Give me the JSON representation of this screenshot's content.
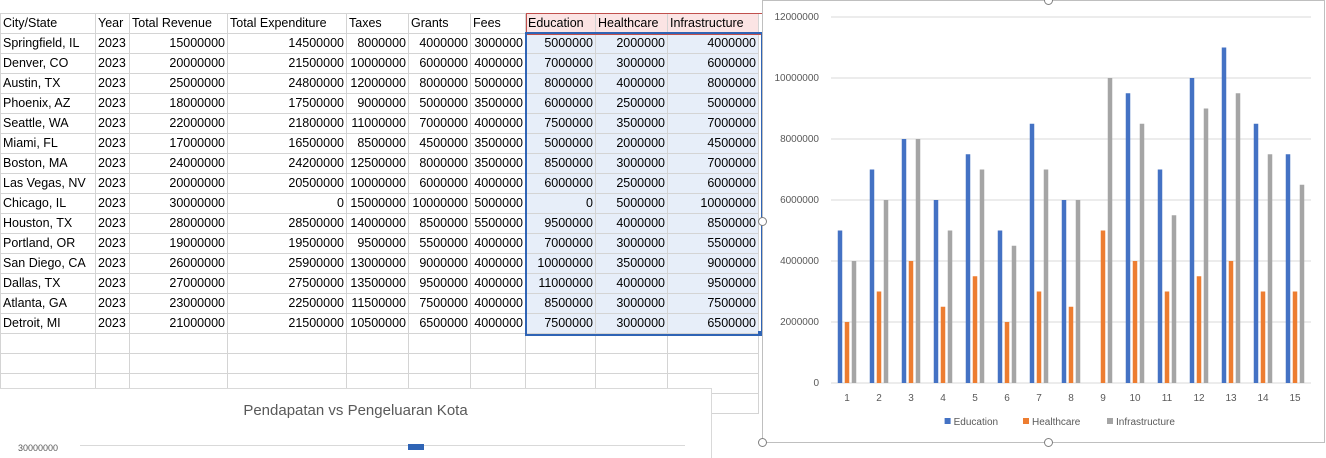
{
  "sheet": {
    "headers": [
      "City/State",
      "Year",
      "Total Revenue",
      "Total Expenditure",
      "Taxes",
      "Grants",
      "Fees",
      "Education",
      "Healthcare",
      "Infrastructure"
    ],
    "rows": [
      [
        "Springfield, IL",
        "2023",
        "15000000",
        "14500000",
        "8000000",
        "4000000",
        "3000000",
        "5000000",
        "2000000",
        "4000000"
      ],
      [
        "Denver, CO",
        "2023",
        "20000000",
        "21500000",
        "10000000",
        "6000000",
        "4000000",
        "7000000",
        "3000000",
        "6000000"
      ],
      [
        "Austin, TX",
        "2023",
        "25000000",
        "24800000",
        "12000000",
        "8000000",
        "5000000",
        "8000000",
        "4000000",
        "8000000"
      ],
      [
        "Phoenix, AZ",
        "2023",
        "18000000",
        "17500000",
        "9000000",
        "5000000",
        "3500000",
        "6000000",
        "2500000",
        "5000000"
      ],
      [
        "Seattle, WA",
        "2023",
        "22000000",
        "21800000",
        "11000000",
        "7000000",
        "4000000",
        "7500000",
        "3500000",
        "7000000"
      ],
      [
        "Miami, FL",
        "2023",
        "17000000",
        "16500000",
        "8500000",
        "4500000",
        "3500000",
        "5000000",
        "2000000",
        "4500000"
      ],
      [
        "Boston, MA",
        "2023",
        "24000000",
        "24200000",
        "12500000",
        "8000000",
        "3500000",
        "8500000",
        "3000000",
        "7000000"
      ],
      [
        "Las Vegas, NV",
        "2023",
        "20000000",
        "20500000",
        "10000000",
        "6000000",
        "4000000",
        "6000000",
        "2500000",
        "6000000"
      ],
      [
        "Chicago, IL",
        "2023",
        "30000000",
        "0",
        "15000000",
        "10000000",
        "5000000",
        "0",
        "5000000",
        "10000000"
      ],
      [
        "Houston, TX",
        "2023",
        "28000000",
        "28500000",
        "14000000",
        "8500000",
        "5500000",
        "9500000",
        "4000000",
        "8500000"
      ],
      [
        "Portland, OR",
        "2023",
        "19000000",
        "19500000",
        "9500000",
        "5500000",
        "4000000",
        "7000000",
        "3000000",
        "5500000"
      ],
      [
        "San Diego, CA",
        "2023",
        "26000000",
        "25900000",
        "13000000",
        "9000000",
        "4000000",
        "10000000",
        "3500000",
        "9000000"
      ],
      [
        "Dallas, TX",
        "2023",
        "27000000",
        "27500000",
        "13500000",
        "9500000",
        "4000000",
        "11000000",
        "4000000",
        "9500000"
      ],
      [
        "Atlanta, GA",
        "2023",
        "23000000",
        "22500000",
        "11500000",
        "7500000",
        "4000000",
        "8500000",
        "3000000",
        "7500000"
      ],
      [
        "Detroit, MI",
        "2023",
        "21000000",
        "21500000",
        "10500000",
        "6500000",
        "4000000",
        "7500000",
        "3000000",
        "6500000"
      ]
    ]
  },
  "chart2": {
    "title": "Pendapatan vs Pengeluaran Kota",
    "first_tick": "30000000"
  },
  "chart_data": {
    "type": "bar",
    "categories": [
      "1",
      "2",
      "3",
      "4",
      "5",
      "6",
      "7",
      "8",
      "9",
      "10",
      "11",
      "12",
      "13",
      "14",
      "15"
    ],
    "series": [
      {
        "name": "Education",
        "color": "#4472c4",
        "values": [
          5000000,
          7000000,
          8000000,
          6000000,
          7500000,
          5000000,
          8500000,
          6000000,
          0,
          9500000,
          7000000,
          10000000,
          11000000,
          8500000,
          7500000
        ]
      },
      {
        "name": "Healthcare",
        "color": "#ed7d31",
        "values": [
          2000000,
          3000000,
          4000000,
          2500000,
          3500000,
          2000000,
          3000000,
          2500000,
          5000000,
          4000000,
          3000000,
          3500000,
          4000000,
          3000000,
          3000000
        ]
      },
      {
        "name": "Infrastructure",
        "color": "#a5a5a5",
        "values": [
          4000000,
          6000000,
          8000000,
          5000000,
          7000000,
          4500000,
          7000000,
          6000000,
          10000000,
          8500000,
          5500000,
          9000000,
          9500000,
          7500000,
          6500000
        ]
      }
    ],
    "yticks": [
      "0",
      "2000000",
      "4000000",
      "6000000",
      "8000000",
      "10000000",
      "12000000"
    ],
    "ylim": [
      0,
      12000000
    ],
    "legend": "bottom",
    "grid": true
  }
}
